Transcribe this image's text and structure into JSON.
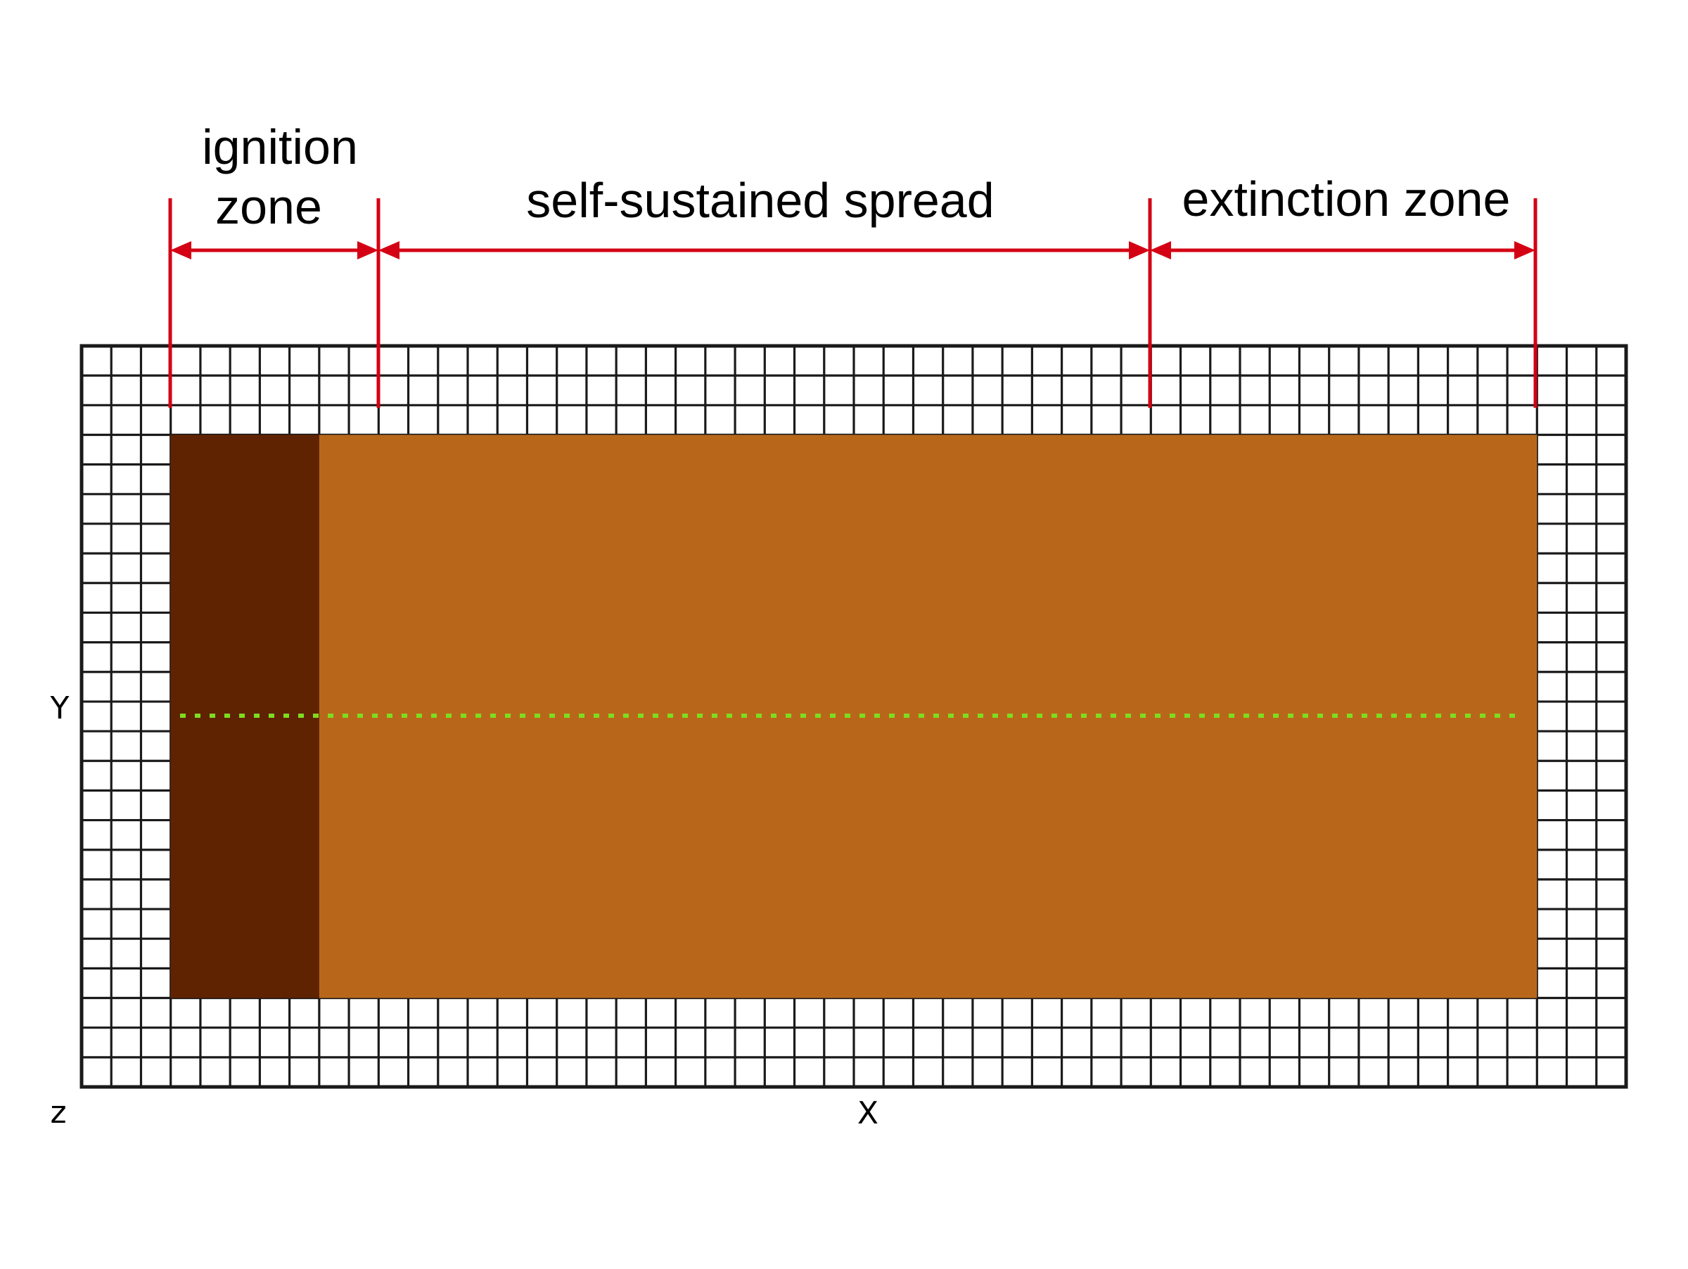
{
  "zones": {
    "ignition_line1": "ignition",
    "ignition_line2": "zone",
    "self_sustained": "self-sustained spread",
    "extinction": "extinction zone"
  },
  "axes": {
    "y": "Y",
    "z": "z",
    "x": "X"
  },
  "colors": {
    "grid_line": "#1a1a1a",
    "marker": "#d40014",
    "ignition_fill": "#5f2302",
    "fuel_fill": "#b8671a",
    "probe_dots": "#7ddd1f"
  }
}
